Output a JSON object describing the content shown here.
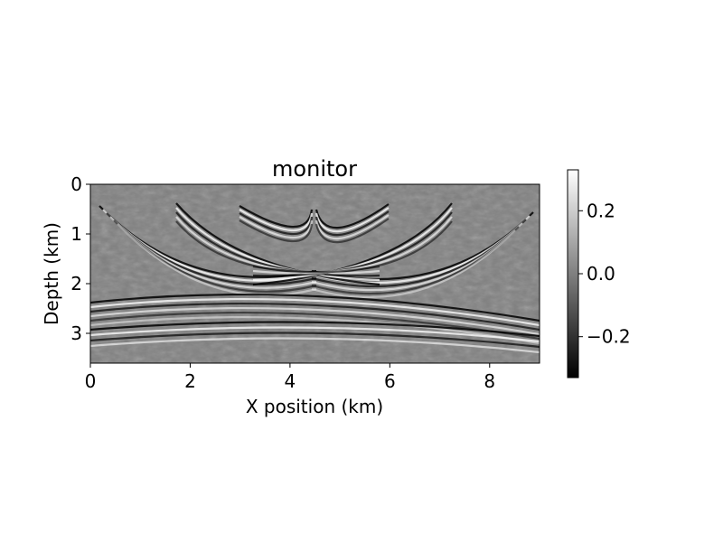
{
  "chart_data": {
    "type": "heatmap",
    "title": "monitor",
    "xlabel": "X position (km)",
    "ylabel": "Depth (km)",
    "xlim": [
      0,
      9
    ],
    "ylim": [
      3.6,
      0
    ],
    "x_ticks": [
      "0",
      "2",
      "4",
      "6",
      "8"
    ],
    "y_ticks": [
      "0",
      "1",
      "2",
      "3"
    ],
    "colormap": "gray",
    "colorbar": {
      "vmin": -0.33,
      "vmax": 0.33,
      "ticks": [
        "0.2",
        "0.0",
        "−0.2"
      ]
    },
    "grid": false
  }
}
